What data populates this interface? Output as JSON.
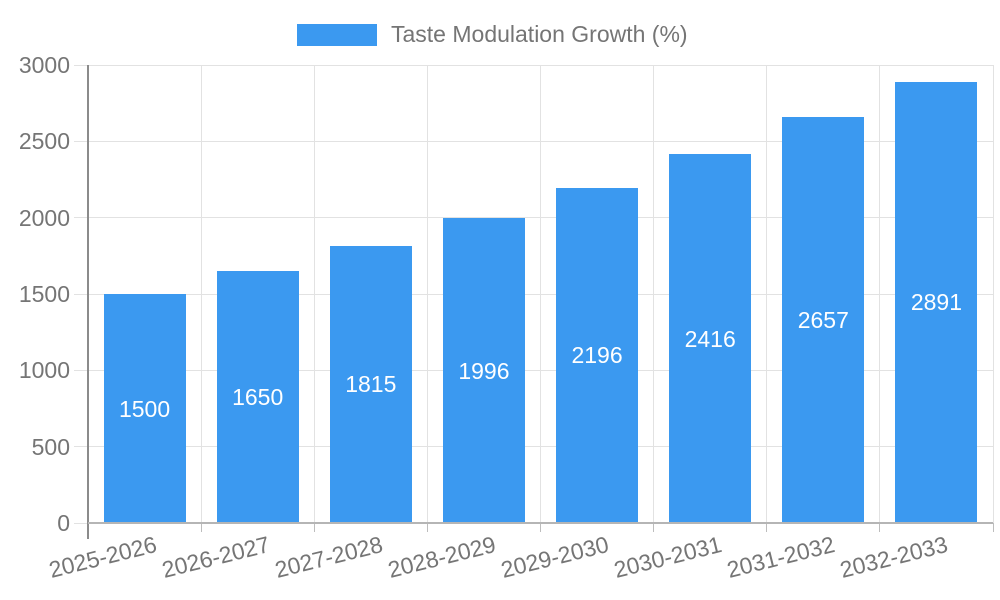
{
  "legend": {
    "label": "Taste Modulation Growth (%)"
  },
  "colors": {
    "bar": "#3B99F0",
    "bar_value_text": "#ffffff",
    "axis_text": "#757575",
    "gridline": "#e2e2e2",
    "y_axis_line": "#8b8b8b",
    "x_axis_line": "#b5b5b5",
    "background": "#ffffff"
  },
  "chart_data": {
    "type": "bar",
    "title": "",
    "xlabel": "",
    "ylabel": "",
    "legend_entries": [
      "Taste Modulation Growth (%)"
    ],
    "legend_position": "top",
    "grid": true,
    "categories": [
      "2025-2026",
      "2026-2027",
      "2027-2028",
      "2028-2029",
      "2029-2030",
      "2030-2031",
      "2031-2032",
      "2032-2033"
    ],
    "series": [
      {
        "name": "Taste Modulation Growth (%)",
        "color": "#3B99F0",
        "values": [
          1500,
          1650,
          1815,
          1996,
          2196,
          2416,
          2657,
          2891
        ]
      }
    ],
    "value_labels": [
      1500,
      1650,
      1815,
      1996,
      2196,
      2416,
      2657,
      2891
    ],
    "ylim": [
      0,
      3000
    ],
    "yticks": [
      0,
      500,
      1000,
      1500,
      2000,
      2500,
      3000
    ]
  }
}
